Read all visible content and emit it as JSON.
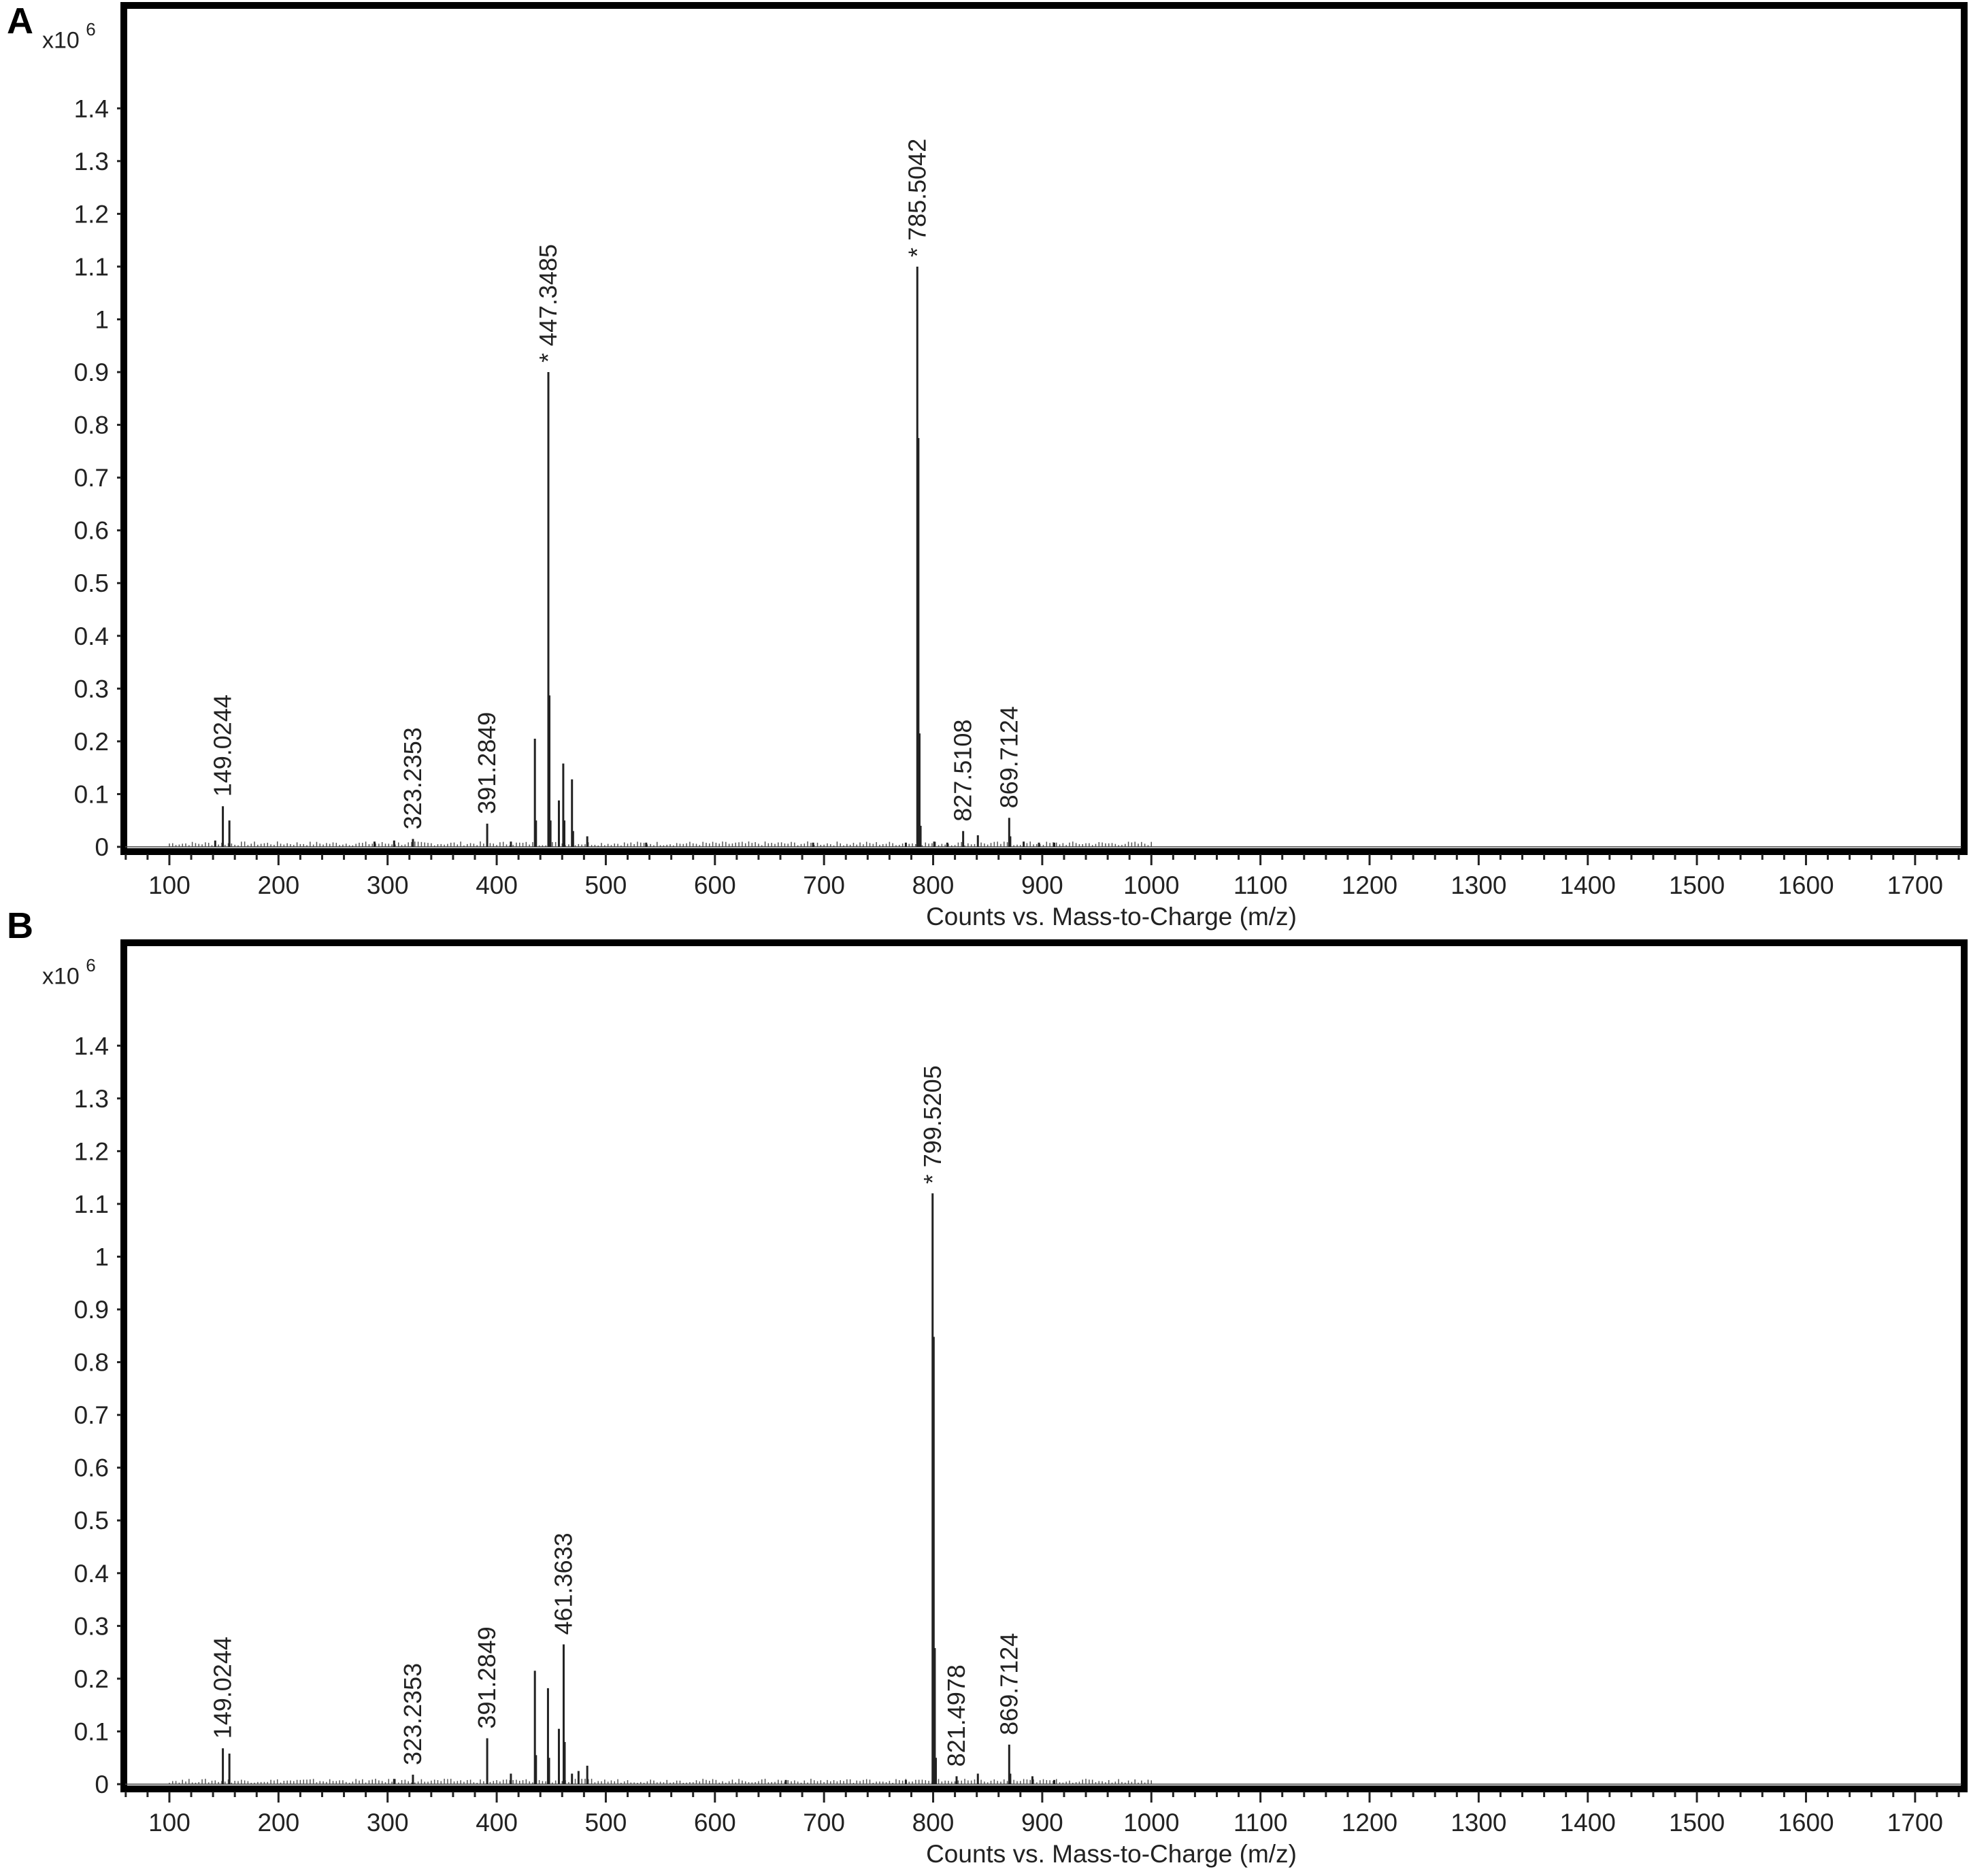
{
  "panels": [
    {
      "label": "A",
      "scale": {
        "prefix": "x10",
        "exponent": "6"
      },
      "xlabel": "Counts vs. Mass-to-Charge (m/z)"
    },
    {
      "label": "B",
      "scale": {
        "prefix": "x10",
        "exponent": "6"
      },
      "xlabel": "Counts vs. Mass-to-Charge (m/z)"
    }
  ],
  "colors": {
    "frame": "#000000",
    "peaks": "#222222",
    "text": "#222222"
  },
  "chart_data": [
    {
      "type": "bar",
      "panel": "A",
      "xlabel": "Counts vs. Mass-to-Charge (m/z)",
      "ylabel": "",
      "y_scale_note": "x10 6",
      "xlim": [
        57,
        1745
      ],
      "ylim": [
        0,
        1.47
      ],
      "x_ticks": [
        "100",
        "200",
        "300",
        "400",
        "500",
        "600",
        "700",
        "800",
        "900",
        "1000",
        "1100",
        "1200",
        "1300",
        "1400",
        "1500",
        "1600",
        "1700"
      ],
      "y_ticks": [
        "0",
        "0.1",
        "0.2",
        "0.3",
        "0.4",
        "0.5",
        "0.6",
        "0.7",
        "0.8",
        "0.9",
        "1",
        "1.1",
        "1.2",
        "1.3",
        "1.4"
      ],
      "grid": false,
      "peaks": [
        {
          "mz": 142,
          "i": 0.012
        },
        {
          "mz": 149.0244,
          "i": 0.077,
          "label": "149.0244"
        },
        {
          "mz": 155,
          "i": 0.05
        },
        {
          "mz": 288,
          "i": 0.01
        },
        {
          "mz": 306,
          "i": 0.012
        },
        {
          "mz": 323.2353,
          "i": 0.015,
          "label": "323.2353"
        },
        {
          "mz": 391.2849,
          "i": 0.044,
          "label": "391.2849"
        },
        {
          "mz": 413,
          "i": 0.01
        },
        {
          "mz": 435,
          "i": 0.205
        },
        {
          "mz": 436,
          "i": 0.05
        },
        {
          "mz": 447.3485,
          "i": 0.9,
          "label": "* 447.3485"
        },
        {
          "mz": 448.3,
          "i": 0.287
        },
        {
          "mz": 449.3,
          "i": 0.05
        },
        {
          "mz": 457,
          "i": 0.088
        },
        {
          "mz": 461,
          "i": 0.158
        },
        {
          "mz": 462,
          "i": 0.05
        },
        {
          "mz": 469,
          "i": 0.128
        },
        {
          "mz": 470,
          "i": 0.03
        },
        {
          "mz": 483,
          "i": 0.02
        },
        {
          "mz": 537,
          "i": 0.008
        },
        {
          "mz": 690,
          "i": 0.008
        },
        {
          "mz": 775,
          "i": 0.008
        },
        {
          "mz": 785.5042,
          "i": 1.1,
          "label": "* 785.5042"
        },
        {
          "mz": 786.5,
          "i": 0.775
        },
        {
          "mz": 787.5,
          "i": 0.215
        },
        {
          "mz": 788.5,
          "i": 0.04
        },
        {
          "mz": 801,
          "i": 0.01
        },
        {
          "mz": 813,
          "i": 0.008
        },
        {
          "mz": 827.5108,
          "i": 0.03,
          "label": "827.5108"
        },
        {
          "mz": 841,
          "i": 0.022
        },
        {
          "mz": 869.7124,
          "i": 0.055,
          "label": "869.7124"
        },
        {
          "mz": 870.7,
          "i": 0.02
        },
        {
          "mz": 883,
          "i": 0.01
        },
        {
          "mz": 897,
          "i": 0.008
        },
        {
          "mz": 911,
          "i": 0.008
        }
      ]
    },
    {
      "type": "bar",
      "panel": "B",
      "xlabel": "Counts vs. Mass-to-Charge (m/z)",
      "ylabel": "",
      "y_scale_note": "x10 6",
      "xlim": [
        57,
        1745
      ],
      "ylim": [
        0,
        1.47
      ],
      "x_ticks": [
        "100",
        "200",
        "300",
        "400",
        "500",
        "600",
        "700",
        "800",
        "900",
        "1000",
        "1100",
        "1200",
        "1300",
        "1400",
        "1500",
        "1600",
        "1700"
      ],
      "y_ticks": [
        "0",
        "0.1",
        "0.2",
        "0.3",
        "0.4",
        "0.5",
        "0.6",
        "0.7",
        "0.8",
        "0.9",
        "1",
        "1.1",
        "1.2",
        "1.3",
        "1.4"
      ],
      "grid": false,
      "peaks": [
        {
          "mz": 149.0244,
          "i": 0.068,
          "label": "149.0244"
        },
        {
          "mz": 155,
          "i": 0.058
        },
        {
          "mz": 306,
          "i": 0.01
        },
        {
          "mz": 323.2353,
          "i": 0.018,
          "label": "323.2353"
        },
        {
          "mz": 391.2849,
          "i": 0.087,
          "label": "391.2849"
        },
        {
          "mz": 413,
          "i": 0.02
        },
        {
          "mz": 435,
          "i": 0.215
        },
        {
          "mz": 436,
          "i": 0.055
        },
        {
          "mz": 447,
          "i": 0.182
        },
        {
          "mz": 448,
          "i": 0.05
        },
        {
          "mz": 457,
          "i": 0.105
        },
        {
          "mz": 461.3633,
          "i": 0.265,
          "label": "461.3633"
        },
        {
          "mz": 462.3,
          "i": 0.08
        },
        {
          "mz": 469,
          "i": 0.02
        },
        {
          "mz": 475,
          "i": 0.025
        },
        {
          "mz": 483,
          "i": 0.035
        },
        {
          "mz": 665,
          "i": 0.008
        },
        {
          "mz": 775,
          "i": 0.008
        },
        {
          "mz": 799.5205,
          "i": 1.12,
          "label": "* 799.5205"
        },
        {
          "mz": 800.5,
          "i": 0.848
        },
        {
          "mz": 801.5,
          "i": 0.258
        },
        {
          "mz": 802.5,
          "i": 0.05
        },
        {
          "mz": 821.4978,
          "i": 0.015,
          "label": "821.4978"
        },
        {
          "mz": 841,
          "i": 0.02
        },
        {
          "mz": 869.7124,
          "i": 0.075,
          "label": "869.7124"
        },
        {
          "mz": 870.7,
          "i": 0.02
        },
        {
          "mz": 891,
          "i": 0.015
        },
        {
          "mz": 911,
          "i": 0.008
        }
      ]
    }
  ]
}
